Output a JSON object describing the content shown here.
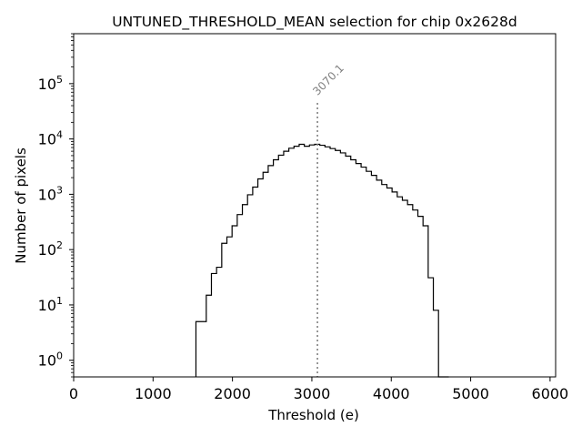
{
  "chart_data": {
    "type": "histogram",
    "title": "UNTUNED_THRESHOLD_MEAN selection for chip 0x2628d",
    "xlabel": "Threshold (e)",
    "ylabel": "Number of pixels",
    "xlim": [
      0,
      6070
    ],
    "ylim": [
      0.5,
      800000
    ],
    "yscale": "log",
    "grid": false,
    "xticks": [
      0,
      1000,
      2000,
      3000,
      4000,
      5000,
      6000
    ],
    "xtick_labels": [
      "0",
      "1000",
      "2000",
      "3000",
      "4000",
      "5000",
      "6000"
    ],
    "yticks": [
      1,
      10,
      100,
      1000,
      10000,
      100000
    ],
    "ytick_base": "10",
    "ytick_exponents": [
      "0",
      "1",
      "2",
      "3",
      "4",
      "5"
    ],
    "bin_edges": [
      1540,
      1605,
      1670,
      1735,
      1800,
      1865,
      1930,
      1995,
      2060,
      2125,
      2190,
      2255,
      2320,
      2385,
      2450,
      2515,
      2580,
      2645,
      2710,
      2775,
      2840,
      2905,
      2970,
      3035,
      3100,
      3165,
      3230,
      3295,
      3360,
      3425,
      3490,
      3555,
      3620,
      3685,
      3750,
      3815,
      3880,
      3945,
      4010,
      4075,
      4140,
      4205,
      4270,
      4335,
      4400,
      4465,
      4530,
      4595,
      4660,
      4725
    ],
    "counts": [
      5,
      5,
      15,
      37,
      48,
      130,
      170,
      270,
      430,
      650,
      980,
      1350,
      1900,
      2500,
      3300,
      4200,
      5100,
      6000,
      6800,
      7400,
      8000,
      7400,
      7800,
      8000,
      7700,
      7200,
      6700,
      6200,
      5600,
      4900,
      4200,
      3600,
      3100,
      2600,
      2200,
      1800,
      1500,
      1300,
      1100,
      900,
      780,
      650,
      520,
      400,
      270,
      31,
      8,
      0,
      0
    ],
    "vline": {
      "x": 3070.1,
      "label": "3070.1",
      "color": "#808080",
      "style": "dotted"
    },
    "colors": {
      "hist": "#000000",
      "vline": "#808080"
    }
  }
}
